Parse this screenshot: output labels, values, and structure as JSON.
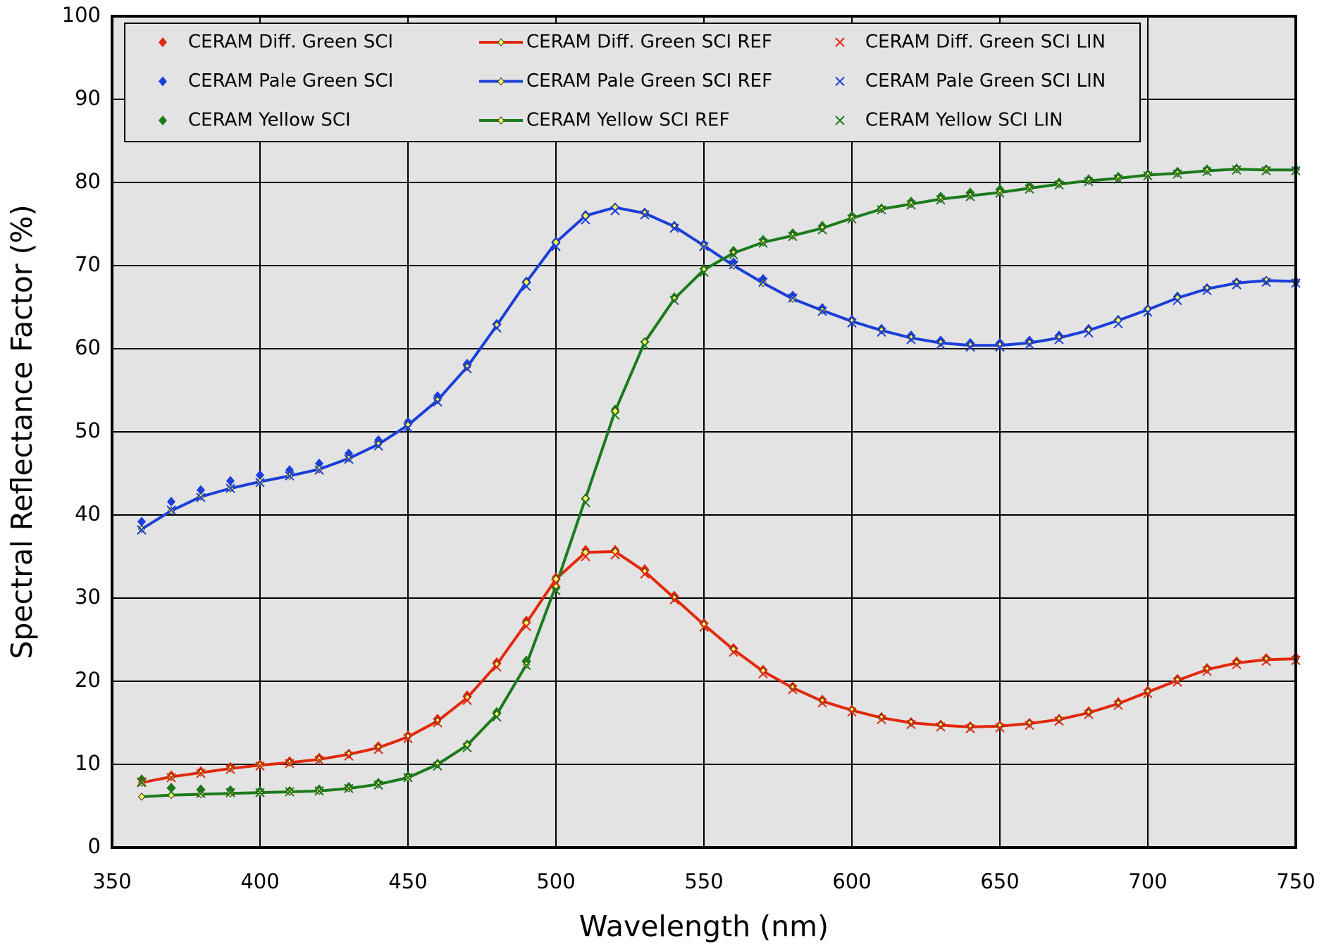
{
  "chart_data": {
    "type": "line",
    "xlabel": "Wavelength (nm)",
    "ylabel": "Spectral Reflectance Factor (%)",
    "x": [
      360,
      370,
      380,
      390,
      400,
      410,
      420,
      430,
      440,
      450,
      460,
      470,
      480,
      490,
      500,
      510,
      520,
      530,
      540,
      550,
      560,
      570,
      580,
      590,
      600,
      610,
      620,
      630,
      640,
      650,
      660,
      670,
      680,
      690,
      700,
      710,
      720,
      730,
      740,
      750
    ],
    "xlim": [
      350,
      750
    ],
    "xticks": [
      350,
      400,
      450,
      500,
      550,
      600,
      650,
      700,
      750
    ],
    "ylim": [
      0,
      100
    ],
    "yticks": [
      0,
      10,
      20,
      30,
      40,
      50,
      60,
      70,
      80,
      90,
      100
    ],
    "grid": true,
    "legend": "top-left",
    "background": "#e3e3e3",
    "series": [
      {
        "name": "CERAM Diff. Green SCI",
        "color": "#e2290c",
        "marker": "diamond",
        "line": false,
        "values": [
          8.2,
          8.7,
          9.2,
          9.7,
          10.0,
          10.4,
          10.8,
          11.3,
          12.2,
          13.5,
          15.5,
          18.3,
          22.3,
          27.3,
          32.5,
          35.8,
          35.8,
          33.5,
          30.3,
          27.0,
          24.0,
          21.4,
          19.4,
          17.8,
          16.6,
          15.7,
          15.1,
          14.8,
          14.6,
          14.7,
          15.0,
          15.5,
          16.4,
          17.5,
          18.9,
          20.3,
          21.6,
          22.4,
          22.8,
          22.9
        ]
      },
      {
        "name": "CERAM Pale Green SCI",
        "color": "#1b3fd8",
        "marker": "diamond",
        "line": false,
        "values": [
          39.2,
          41.6,
          43.0,
          44.1,
          44.8,
          45.4,
          46.2,
          47.4,
          49.0,
          51.2,
          54.3,
          58.2,
          63.0,
          68.1,
          72.9,
          76.1,
          77.0,
          76.4,
          74.8,
          72.6,
          70.4,
          68.4,
          66.4,
          64.9,
          63.5,
          62.4,
          61.6,
          61.0,
          60.7,
          60.7,
          61.0,
          61.6,
          62.4,
          63.5,
          64.8,
          66.3,
          67.3,
          68.0,
          68.2,
          68.1
        ]
      },
      {
        "name": "CERAM Yellow SCI",
        "color": "#1b7b1b",
        "marker": "diamond",
        "line": false,
        "values": [
          8.2,
          7.2,
          7.0,
          6.9,
          6.8,
          6.8,
          7.0,
          7.3,
          7.8,
          8.6,
          10.1,
          12.4,
          16.3,
          22.5,
          31.2,
          42.0,
          52.7,
          60.8,
          66.2,
          69.6,
          71.8,
          73.1,
          73.9,
          74.8,
          76.0,
          76.9,
          77.7,
          78.3,
          78.8,
          79.2,
          79.6,
          80.0,
          80.4,
          80.7,
          81.0,
          81.3,
          81.6,
          81.7,
          81.6,
          81.6
        ]
      },
      {
        "name": "CERAM Diff. Green SCI REF",
        "color": "#e2290c",
        "marker": "open-diamond",
        "line": true,
        "values": [
          7.8,
          8.5,
          9.0,
          9.5,
          9.9,
          10.2,
          10.6,
          11.2,
          12.0,
          13.3,
          15.2,
          18.0,
          22.0,
          27.0,
          32.3,
          35.5,
          35.6,
          33.2,
          30.0,
          26.8,
          23.8,
          21.2,
          19.2,
          17.6,
          16.5,
          15.6,
          15.0,
          14.7,
          14.5,
          14.6,
          14.9,
          15.4,
          16.2,
          17.3,
          18.7,
          20.1,
          21.4,
          22.2,
          22.6,
          22.7
        ]
      },
      {
        "name": "CERAM Pale Green SCI REF",
        "color": "#1b3fd8",
        "marker": "open-diamond",
        "line": true,
        "values": [
          38.3,
          40.5,
          42.2,
          43.2,
          44.0,
          44.7,
          45.5,
          46.8,
          48.5,
          50.8,
          53.8,
          57.8,
          62.8,
          68.0,
          72.8,
          76.0,
          77.0,
          76.3,
          74.7,
          72.4,
          70.0,
          67.9,
          66.0,
          64.6,
          63.3,
          62.2,
          61.3,
          60.7,
          60.4,
          60.4,
          60.7,
          61.3,
          62.2,
          63.4,
          64.7,
          66.1,
          67.2,
          67.9,
          68.2,
          68.1
        ]
      },
      {
        "name": "CERAM Yellow SCI REF",
        "color": "#1b7b1b",
        "marker": "open-diamond",
        "line": true,
        "values": [
          6.1,
          6.3,
          6.4,
          6.5,
          6.6,
          6.7,
          6.8,
          7.1,
          7.6,
          8.4,
          10.0,
          12.3,
          16.0,
          22.0,
          31.5,
          42.0,
          52.5,
          60.8,
          66.0,
          69.5,
          71.5,
          72.8,
          73.6,
          74.5,
          75.7,
          76.8,
          77.4,
          78.0,
          78.4,
          78.8,
          79.3,
          79.8,
          80.2,
          80.5,
          80.9,
          81.1,
          81.4,
          81.6,
          81.5,
          81.5
        ]
      },
      {
        "name": "CERAM Diff. Green SCI LIN",
        "color": "#e2290c",
        "marker": "cross",
        "line": false,
        "values": [
          7.9,
          8.4,
          8.9,
          9.4,
          9.8,
          10.1,
          10.5,
          11.0,
          11.8,
          13.1,
          15.0,
          17.7,
          21.7,
          26.6,
          31.8,
          35.0,
          35.2,
          32.9,
          29.8,
          26.5,
          23.5,
          20.9,
          19.0,
          17.4,
          16.3,
          15.4,
          14.8,
          14.5,
          14.3,
          14.4,
          14.7,
          15.2,
          16.0,
          17.1,
          18.5,
          19.9,
          21.2,
          22.0,
          22.4,
          22.5
        ]
      },
      {
        "name": "CERAM Pale Green SCI LIN",
        "color": "#1b3fd8",
        "marker": "cross",
        "line": false,
        "values": [
          38.2,
          40.6,
          42.1,
          43.2,
          43.9,
          44.7,
          45.4,
          46.7,
          48.3,
          50.5,
          53.6,
          57.6,
          62.5,
          67.5,
          72.3,
          75.5,
          76.6,
          76.1,
          74.5,
          72.3,
          70.1,
          68.0,
          66.1,
          64.5,
          63.1,
          62.0,
          61.1,
          60.5,
          60.2,
          60.2,
          60.5,
          61.1,
          61.9,
          63.0,
          64.4,
          65.8,
          67.0,
          67.7,
          68.0,
          67.9
        ]
      },
      {
        "name": "CERAM Yellow SCI LIN",
        "color": "#1b7b1b",
        "marker": "cross",
        "line": false,
        "values": [
          7.8,
          6.7,
          6.5,
          6.6,
          6.6,
          6.7,
          6.8,
          7.1,
          7.5,
          8.4,
          9.8,
          12.0,
          15.7,
          21.9,
          30.9,
          41.5,
          52.0,
          60.4,
          65.8,
          69.2,
          71.3,
          72.7,
          73.5,
          74.3,
          75.6,
          76.7,
          77.3,
          77.9,
          78.3,
          78.7,
          79.2,
          79.7,
          80.1,
          80.4,
          80.8,
          81.0,
          81.3,
          81.5,
          81.4,
          81.4
        ]
      }
    ]
  }
}
